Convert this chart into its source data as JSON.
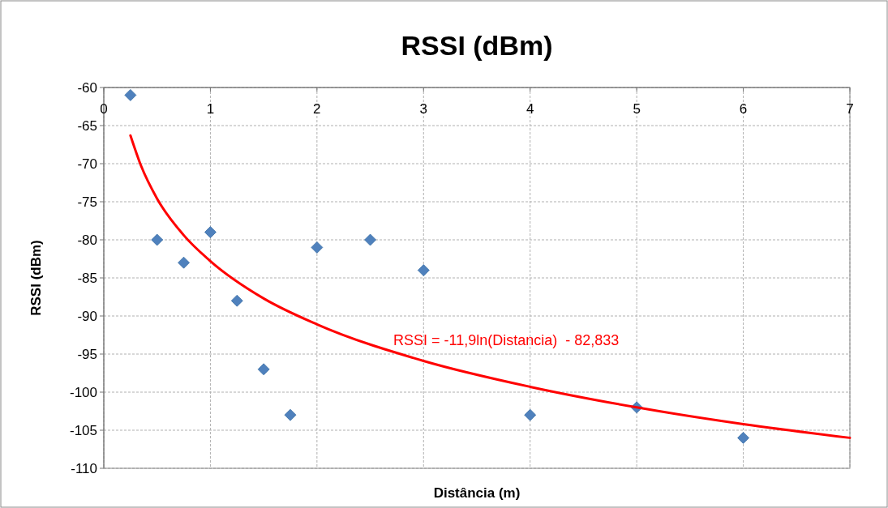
{
  "chart_data": {
    "type": "scatter",
    "title": "RSSI (dBm)",
    "xlabel": "Distância  (m)",
    "ylabel": "RSSI (dBm)",
    "xlim": [
      0,
      7
    ],
    "xticks": [
      0,
      1,
      2,
      3,
      4,
      5,
      6,
      7
    ],
    "ylim": [
      -110,
      -60
    ],
    "yticks": [
      -110,
      -105,
      -100,
      -95,
      -90,
      -85,
      -80,
      -75,
      -70,
      -65,
      -60
    ],
    "grid": true,
    "marker": "diamond",
    "series": [
      {
        "color": "#4f81bd",
        "x": [
          0.25,
          0.5,
          0.75,
          1,
          1.25,
          1.5,
          1.75,
          2,
          2.5,
          3,
          4,
          5,
          6
        ],
        "values": [
          -61,
          -80,
          -83,
          -79,
          -88,
          -97,
          -103,
          -81,
          -80,
          -84,
          -103,
          -102,
          -106
        ]
      },
      {
        "type": "line",
        "color": "#ff0000",
        "marker": "none",
        "x": [
          0.25,
          0.35,
          0.5,
          0.75,
          1,
          1.5,
          2,
          3,
          4,
          5,
          6,
          7
        ],
        "values": [
          -66.3,
          -70.3,
          -74.6,
          -79.4,
          -82.8,
          -87.7,
          -91.1,
          -95.9,
          -99.3,
          -102.0,
          -104.2,
          -106.0
        ]
      }
    ],
    "annotations": [
      "RSSI = -11,9ln(Distancia)  - 82,833"
    ]
  }
}
